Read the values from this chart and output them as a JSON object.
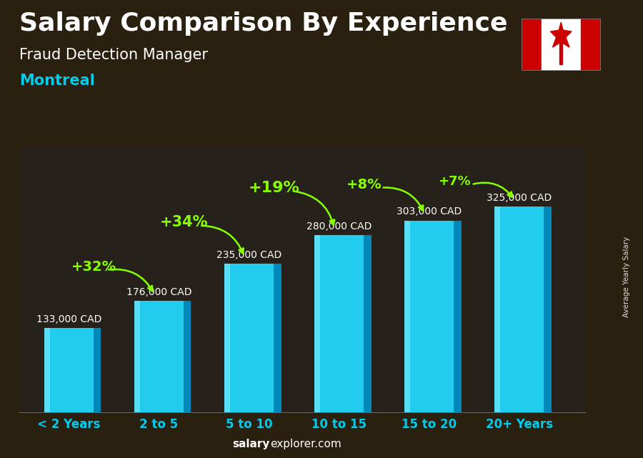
{
  "title_line1": "Salary Comparison By Experience",
  "subtitle_line1": "Fraud Detection Manager",
  "subtitle_line2": "Montreal",
  "categories": [
    "< 2 Years",
    "2 to 5",
    "5 to 10",
    "10 to 15",
    "15 to 20",
    "20+ Years"
  ],
  "values": [
    133000,
    176000,
    235000,
    280000,
    303000,
    325000
  ],
  "value_labels": [
    "133,000 CAD",
    "176,000 CAD",
    "235,000 CAD",
    "280,000 CAD",
    "303,000 CAD",
    "325,000 CAD"
  ],
  "pct_labels": [
    null,
    "+32%",
    "+34%",
    "+19%",
    "+8%",
    "+7%"
  ],
  "bar_color_main": "#22ccee",
  "bar_color_dark": "#0088bb",
  "bar_color_light": "#88eeff",
  "bar_color_top": "#66ddff",
  "bg_color": "#3a3020",
  "title_color": "#ffffff",
  "subtitle1_color": "#ffffff",
  "subtitle2_color": "#00ccee",
  "pct_color": "#88ff00",
  "value_label_color": "#ffffff",
  "category_color": "#00ccee",
  "footer_salary_color": "#ffffff",
  "footer_explorer_color": "#ffffff",
  "ylabel_text": "Average Yearly Salary",
  "footer_text": "salaryexplorer.com",
  "ylim": [
    0,
    420000
  ],
  "bar_width": 0.55,
  "depth_ratio": 0.15,
  "title_fontsize": 26,
  "subtitle1_fontsize": 15,
  "subtitle2_fontsize": 15,
  "category_fontsize": 12,
  "value_fontsize": 10,
  "pct_fontsize": [
    14,
    15,
    16,
    14,
    13
  ],
  "flag_red": "#cc0000",
  "flag_white": "#ffffff"
}
